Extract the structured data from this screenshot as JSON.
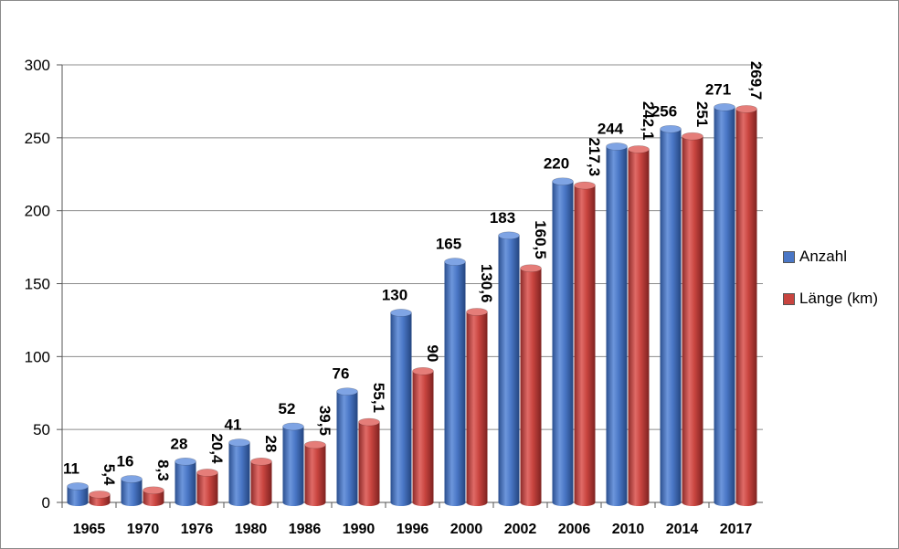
{
  "chart_data": {
    "type": "bar",
    "categories": [
      "1965",
      "1970",
      "1976",
      "1980",
      "1986",
      "1990",
      "1996",
      "2000",
      "2002",
      "2006",
      "2010",
      "2014",
      "2017"
    ],
    "series": [
      {
        "name": "Anzahl",
        "color": "#3f6fc0",
        "values": [
          11,
          16,
          28,
          41,
          52,
          76,
          130,
          165,
          183,
          220,
          244,
          256,
          271
        ],
        "labels": [
          "11",
          "16",
          "28",
          "41",
          "52",
          "76",
          "130",
          "165",
          "183",
          "220",
          "244",
          "256",
          "271"
        ]
      },
      {
        "name": "Länge (km)",
        "color": "#c0403d",
        "values": [
          5.4,
          8.3,
          20.4,
          28,
          39.5,
          55.1,
          90,
          130.6,
          160.5,
          217.3,
          242.1,
          251,
          269.7
        ],
        "labels": [
          "5,4",
          "8,3",
          "20,4",
          "28",
          "39,5",
          "55,1",
          "90",
          "130,6",
          "160,5",
          "217,3",
          "242,1",
          "251",
          "269,7"
        ]
      }
    ],
    "yticks": [
      "0",
      "50",
      "100",
      "150",
      "200",
      "250",
      "300"
    ],
    "ylim": [
      0,
      300
    ],
    "grid": true,
    "legend": "right"
  }
}
